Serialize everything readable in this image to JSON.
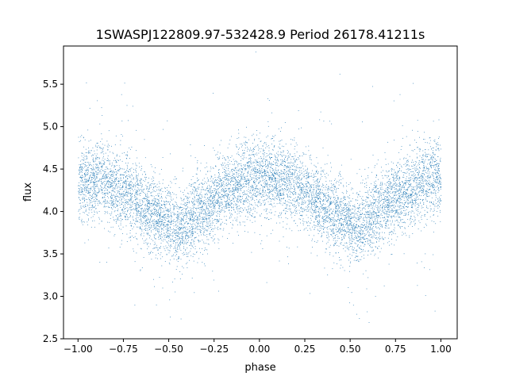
{
  "chart_data": {
    "type": "scatter",
    "title": "1SWASPJ122809.97-532428.9 Period 26178.41211s",
    "xlabel": "phase",
    "ylabel": "flux",
    "xlim": [
      -1.08,
      1.09
    ],
    "ylim": [
      2.5,
      5.95
    ],
    "xticks": [
      -1.0,
      -0.75,
      -0.5,
      -0.25,
      0.0,
      0.25,
      0.5,
      0.75,
      1.0
    ],
    "xtick_labels": [
      "−1.00",
      "−0.75",
      "−0.50",
      "−0.25",
      "0.00",
      "0.25",
      "0.50",
      "0.75",
      "1.00"
    ],
    "yticks": [
      2.5,
      3.0,
      3.5,
      4.0,
      4.5,
      5.0,
      5.5
    ],
    "ytick_labels": [
      "2.5",
      "3.0",
      "3.5",
      "4.0",
      "4.5",
      "5.0",
      "5.5"
    ],
    "grid": false,
    "legend": false,
    "marker_color": "#1f77b4",
    "series": [
      {
        "description_of_trend": "phase-folded light curve, maxima near phase -1.0, 0.0, 1.0 (flux ~4.4), minima near phase -0.45 and 0.55 (flux ~3.8)",
        "x": [
          -1.0,
          -0.9,
          -0.8,
          -0.7,
          -0.6,
          -0.5,
          -0.45,
          -0.4,
          -0.3,
          -0.2,
          -0.1,
          0.0,
          0.1,
          0.2,
          0.3,
          0.4,
          0.5,
          0.55,
          0.6,
          0.7,
          0.8,
          0.9,
          1.0
        ],
        "y": [
          4.38,
          4.36,
          4.3,
          4.15,
          4.0,
          3.85,
          3.8,
          3.88,
          4.05,
          4.22,
          4.35,
          4.42,
          4.38,
          4.3,
          4.15,
          4.0,
          3.85,
          3.8,
          3.9,
          4.1,
          4.25,
          4.35,
          4.4
        ]
      }
    ]
  }
}
